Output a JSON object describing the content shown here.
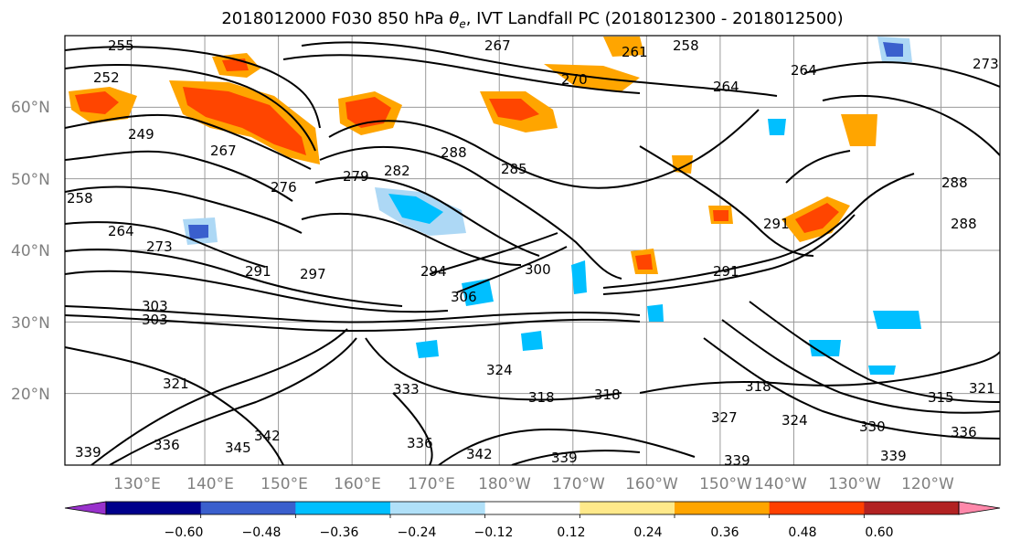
{
  "title": {
    "prefix": "2018012000 F030 850 hPa ",
    "theta_symbol": "θ",
    "theta_sub": "e",
    "suffix": ", IVT Landfall PC (2018012300 - 2018012500)"
  },
  "map": {
    "projection": "equirectangular",
    "lon_range": [
      121,
      248
    ],
    "lat_range": [
      10,
      70
    ],
    "lat_ticks": [
      "20°N",
      "30°N",
      "40°N",
      "50°N",
      "60°N"
    ],
    "lon_ticks": [
      "130°E",
      "140°E",
      "150°E",
      "160°E",
      "170°E",
      "180°W",
      "170°W",
      "160°W",
      "150°W",
      "140°W",
      "130°W",
      "120°W"
    ],
    "grid": true,
    "contour_labels": [
      "255",
      "252",
      "249",
      "267",
      "261",
      "258",
      "264",
      "273",
      "270",
      "267",
      "264",
      "288",
      "285",
      "279",
      "282",
      "276",
      "258",
      "264",
      "273",
      "291",
      "294",
      "297",
      "300",
      "306",
      "291",
      "303",
      "291",
      "321",
      "333",
      "324",
      "318",
      "318",
      "327",
      "324",
      "330",
      "336",
      "339",
      "342",
      "339",
      "336",
      "345",
      "342",
      "339",
      "339",
      "315",
      "318",
      "336",
      "321",
      "288",
      "288",
      "303"
    ],
    "anomaly_colors": {
      "orange": "#ffa500",
      "red_orange": "#ff4500",
      "light_blue": "#add8f5",
      "deep_sky": "#00bfff"
    }
  },
  "colorbar": {
    "colors": [
      "#9932cc",
      "#00008b",
      "#3a5fcd",
      "#00bfff",
      "#b0e0f8",
      "#ffffff",
      "#ffe98a",
      "#ffa500",
      "#ff4000",
      "#b22222",
      "#ff88aa"
    ],
    "tick_labels": [
      "−0.60",
      "−0.48",
      "−0.36",
      "−0.24",
      "−0.12",
      "0.12",
      "0.24",
      "0.36",
      "0.48",
      "0.60"
    ]
  }
}
